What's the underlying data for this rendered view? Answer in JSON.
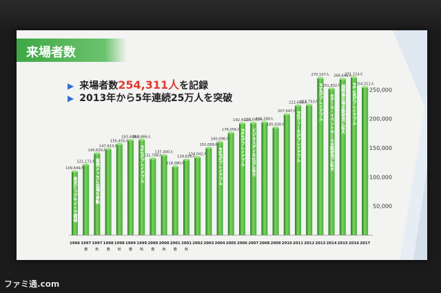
{
  "slide": {
    "title": "来場者数",
    "bullet1": {
      "prefix": "来場者数",
      "highlight": "254,311人",
      "suffix": "を記録"
    },
    "bullet2": "2013年から5年連続25万人を突破",
    "bullet_mark": "▶"
  },
  "watermark": "ファミ通.com",
  "colors": {
    "bar": "#43b03c",
    "bar_light": "#7fd45f",
    "bar_dark": "#23761f",
    "title_bg": "#3ea845",
    "highlight": "#e03b2f",
    "bullet_mark": "#2f6fd6"
  },
  "chart_data": {
    "type": "bar",
    "title": "",
    "xlabel": "",
    "ylabel": "",
    "ylim": [
      0,
      300000
    ],
    "yticks": [
      "50,000",
      "100,000",
      "150,000",
      "200,000",
      "250,000"
    ],
    "ytick_values": [
      50000,
      100000,
      150000,
      200000,
      250000
    ],
    "categories": [
      {
        "year": "1996",
        "season": ""
      },
      {
        "year": "1997",
        "season": "春"
      },
      {
        "year": "1997",
        "season": "秋"
      },
      {
        "year": "1998",
        "season": "春"
      },
      {
        "year": "1998",
        "season": "秋"
      },
      {
        "year": "1999",
        "season": "春"
      },
      {
        "year": "1999",
        "season": "秋"
      },
      {
        "year": "2000",
        "season": "春"
      },
      {
        "year": "2000",
        "season": "秋"
      },
      {
        "year": "2001",
        "season": "春"
      },
      {
        "year": "2001",
        "season": "秋"
      },
      {
        "year": "2002",
        "season": ""
      },
      {
        "year": "2003",
        "season": ""
      },
      {
        "year": "2004",
        "season": ""
      },
      {
        "year": "2005",
        "season": ""
      },
      {
        "year": "2006",
        "season": ""
      },
      {
        "year": "2007",
        "season": ""
      },
      {
        "year": "2008",
        "season": ""
      },
      {
        "year": "2009",
        "season": ""
      },
      {
        "year": "2010",
        "season": ""
      },
      {
        "year": "2011",
        "season": ""
      },
      {
        "year": "2012",
        "season": ""
      },
      {
        "year": "2013",
        "season": ""
      },
      {
        "year": "2014",
        "season": ""
      },
      {
        "year": "2015",
        "season": ""
      },
      {
        "year": "2016",
        "season": ""
      },
      {
        "year": "2017",
        "season": ""
      }
    ],
    "values": [
      109649,
      121172,
      140630,
      147913,
      156455,
      163448,
      163866,
      131708,
      137400,
      118080,
      129626,
      134042,
      150089,
      160096,
      176056,
      192411,
      193040,
      194288,
      185030,
      207647,
      222668,
      223753,
      270197,
      251832,
      268446,
      271224,
      254311
    ],
    "value_labels": [
      "109,649人",
      "121,172人",
      "140,630人",
      "147,913人",
      "156,455人",
      "163,448人",
      "163,866人",
      "131,708人",
      "137,400人",
      "118,080人",
      "129,626人",
      "134,042人",
      "150,089人",
      "160,096人",
      "176,056人",
      "192,411人",
      "193,040人",
      "194,288人",
      "185,030人",
      "207,647人",
      "222,668人",
      "223,753人",
      "270,197人",
      "251,832人",
      "268,446人",
      "271,224人",
      "254,311人"
    ],
    "annotations": [
      {
        "index": 0,
        "text": "東京ビッグサイトで開催"
      },
      {
        "index": 2,
        "text": "幕張メッセに会場を移動"
      },
      {
        "index": 6,
        "text": "PS2がプレイアブル"
      },
      {
        "index": 13,
        "text": "PSPがプレイアブル"
      },
      {
        "index": 15,
        "text": "PS3がプレイアブル"
      },
      {
        "index": 16,
        "text": "ビジネスデイを2日に拡大"
      },
      {
        "index": 20,
        "text": "PSヴィータがプレイアブル"
      },
      {
        "index": 22,
        "text": "PS4がプレイアブル"
      },
      {
        "index": 23,
        "text": "9ホール・イベントホール全館使用に拡大"
      },
      {
        "index": 24,
        "text": "国際展示場全館使用に拡大"
      },
      {
        "index": 25,
        "text": "PS VRがプレイアブル"
      }
    ]
  }
}
